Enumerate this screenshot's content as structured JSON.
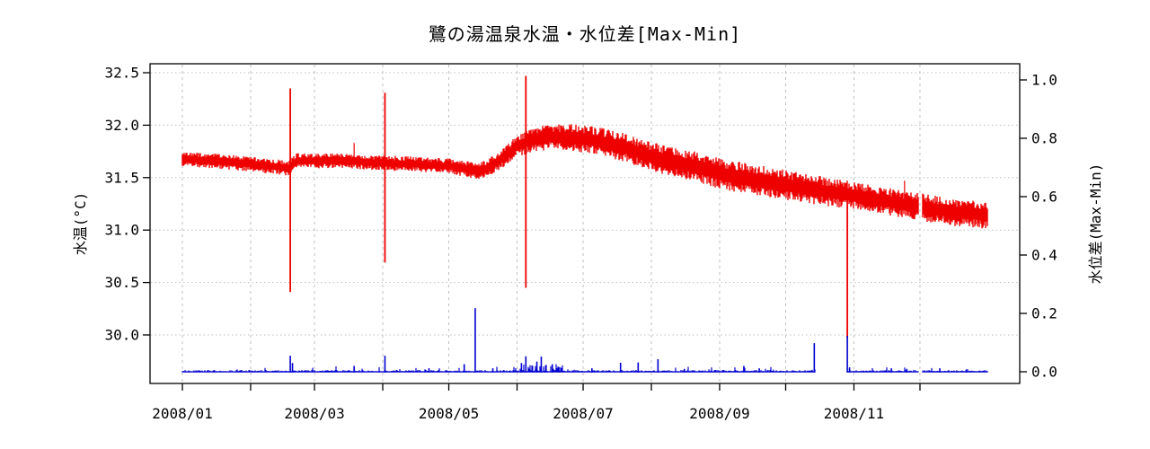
{
  "chart_data": {
    "type": "line",
    "title": "鷺の湯温泉水温・水位差[Max-Min]",
    "grid": true,
    "colors": {
      "temperature": "#ee0000",
      "level": "#0000d0",
      "gridline": "#bfbfbf",
      "axis": "#000000"
    },
    "x_axis": {
      "year": "2008",
      "month_tick_days": [
        0,
        31,
        60,
        91,
        121,
        152,
        182,
        213,
        244,
        274,
        305,
        335
      ],
      "labeled_ticks": [
        {
          "day": 0,
          "label": "2008/01"
        },
        {
          "day": 60,
          "label": "2008/03"
        },
        {
          "day": 121,
          "label": "2008/05"
        },
        {
          "day": 182,
          "label": "2008/07"
        },
        {
          "day": 244,
          "label": "2008/09"
        },
        {
          "day": 305,
          "label": "2008/11"
        }
      ],
      "data_day_range": [
        0,
        365.7
      ]
    },
    "y_left": {
      "label": "水温(°C)",
      "ticks": [
        {
          "value": 30.0,
          "label": "30.0"
        },
        {
          "value": 30.5,
          "label": "30.5"
        },
        {
          "value": 31.0,
          "label": "31.0"
        },
        {
          "value": 31.5,
          "label": "31.5"
        },
        {
          "value": 32.0,
          "label": "32.0"
        },
        {
          "value": 32.5,
          "label": "32.5"
        }
      ],
      "range": [
        29.54,
        32.59
      ]
    },
    "y_right": {
      "label": "水位差(Max-Min)",
      "ticks": [
        {
          "value": 0.0,
          "label": "0.0"
        },
        {
          "value": 0.2,
          "label": "0.2"
        },
        {
          "value": 0.4,
          "label": "0.4"
        },
        {
          "value": 0.6,
          "label": "0.6"
        },
        {
          "value": 0.8,
          "label": "0.8"
        },
        {
          "value": 1.0,
          "label": "1.0"
        }
      ],
      "range": [
        -0.04,
        1.055
      ]
    },
    "series": [
      {
        "name": "水温",
        "axis": "left",
        "style": "noisy-band",
        "center_points": [
          [
            0,
            31.68
          ],
          [
            20,
            31.65
          ],
          [
            40,
            31.61
          ],
          [
            48,
            31.59
          ],
          [
            52,
            31.66
          ],
          [
            70,
            31.66
          ],
          [
            90,
            31.64
          ],
          [
            105,
            31.63
          ],
          [
            121,
            31.61
          ],
          [
            128,
            31.585
          ],
          [
            133,
            31.56
          ],
          [
            138,
            31.585
          ],
          [
            145,
            31.68
          ],
          [
            152,
            31.8
          ],
          [
            158,
            31.85
          ],
          [
            166,
            31.89
          ],
          [
            178,
            31.88
          ],
          [
            190,
            31.845
          ],
          [
            200,
            31.79
          ],
          [
            213,
            31.7
          ],
          [
            230,
            31.62
          ],
          [
            244,
            31.54
          ],
          [
            260,
            31.48
          ],
          [
            274,
            31.43
          ],
          [
            288,
            31.38
          ],
          [
            302,
            31.34
          ],
          [
            315,
            31.29
          ],
          [
            335,
            31.22
          ],
          [
            350,
            31.17
          ],
          [
            366,
            31.14
          ]
        ],
        "halfwidth_points": [
          [
            0,
            0.055
          ],
          [
            120,
            0.055
          ],
          [
            140,
            0.065
          ],
          [
            152,
            0.08
          ],
          [
            166,
            0.095
          ],
          [
            200,
            0.105
          ],
          [
            244,
            0.115
          ],
          [
            302,
            0.105
          ],
          [
            366,
            0.1
          ]
        ],
        "spikes": [
          {
            "day": 49,
            "low": 30.41,
            "high": 32.35
          },
          {
            "day": 92,
            "low": 30.69,
            "high": 32.31
          },
          {
            "day": 156,
            "low": 30.45,
            "high": 32.47
          },
          {
            "day": 302,
            "low": 29.97,
            "high": 31.35
          }
        ],
        "minor_spikes": [
          {
            "day": 78,
            "value": 31.83
          },
          {
            "day": 328,
            "value": 31.47
          }
        ],
        "gaps": [
          [
            334.5,
            336.2
          ]
        ]
      },
      {
        "name": "水位差",
        "axis": "right",
        "style": "baseline-spikes",
        "baseline": 0.0,
        "noise": {
          "base": 0.0018,
          "amp": 0.0045,
          "bump_prob": 0.05,
          "bump_amp": 0.012,
          "cluster_days": [
            152,
            173
          ],
          "cluster_prob": 0.35,
          "cluster_amp": 0.018
        },
        "spikes": [
          {
            "day": 49,
            "value": 0.055
          },
          {
            "day": 50,
            "value": 0.03
          },
          {
            "day": 78,
            "value": 0.02
          },
          {
            "day": 92,
            "value": 0.055
          },
          {
            "day": 112,
            "value": 0.012
          },
          {
            "day": 128,
            "value": 0.026
          },
          {
            "day": 133,
            "value": 0.218
          },
          {
            "day": 141,
            "value": 0.012
          },
          {
            "day": 154,
            "value": 0.03
          },
          {
            "day": 156,
            "value": 0.053
          },
          {
            "day": 159,
            "value": 0.02
          },
          {
            "day": 161,
            "value": 0.035
          },
          {
            "day": 163,
            "value": 0.052
          },
          {
            "day": 165,
            "value": 0.022
          },
          {
            "day": 168,
            "value": 0.026
          },
          {
            "day": 171,
            "value": 0.016
          },
          {
            "day": 186,
            "value": 0.012
          },
          {
            "day": 199,
            "value": 0.031
          },
          {
            "day": 207,
            "value": 0.032
          },
          {
            "day": 216,
            "value": 0.043
          },
          {
            "day": 228,
            "value": 0.01
          },
          {
            "day": 255,
            "value": 0.02
          },
          {
            "day": 262,
            "value": 0.012
          },
          {
            "day": 287,
            "value": 0.098
          },
          {
            "day": 302,
            "value": 0.123
          },
          {
            "day": 303,
            "value": 0.015
          },
          {
            "day": 322,
            "value": 0.012
          },
          {
            "day": 329,
            "value": 0.01
          },
          {
            "day": 344,
            "value": 0.012
          },
          {
            "day": 356,
            "value": 0.008
          }
        ],
        "gaps": [
          [
            287.6,
            301.8
          ],
          [
            334.5,
            336.2
          ]
        ]
      }
    ]
  }
}
